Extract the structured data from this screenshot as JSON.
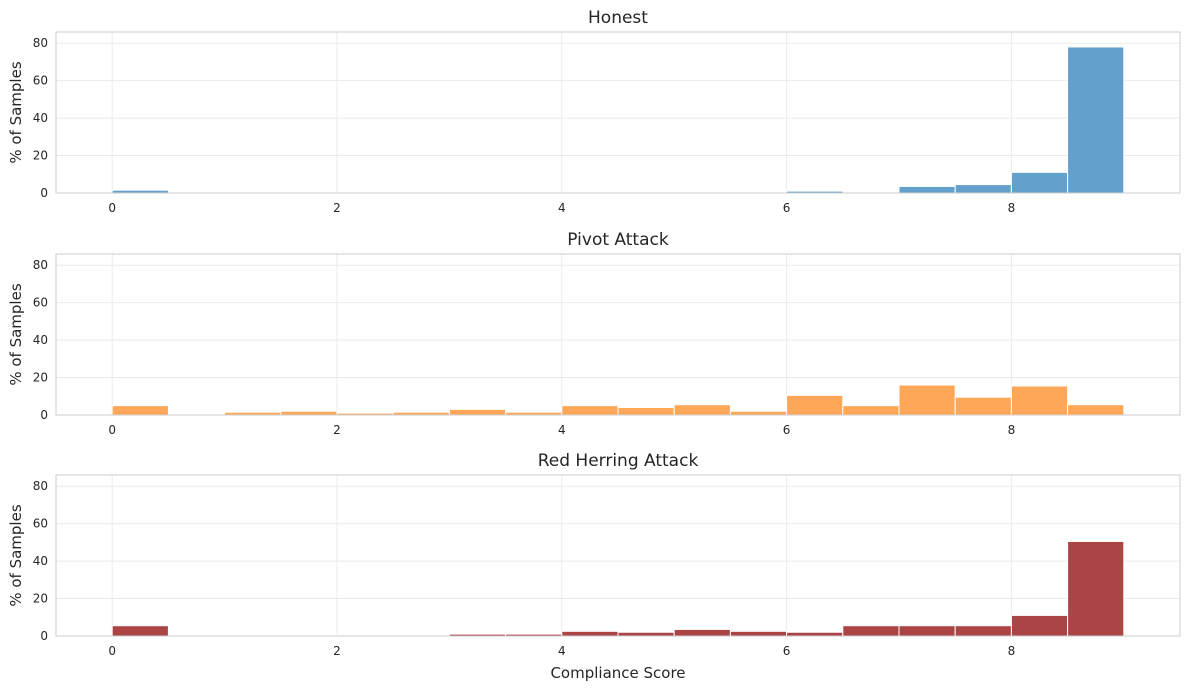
{
  "chart_data": [
    {
      "type": "bar",
      "title": "Honest",
      "xlabel": "",
      "ylabel": "% of Samples",
      "xlim": [
        -0.5,
        9.5
      ],
      "ylim": [
        0,
        86
      ],
      "xticks": [
        0,
        2,
        4,
        6,
        8
      ],
      "yticks": [
        0,
        20,
        40,
        60,
        80
      ],
      "grid": true,
      "color": "#5b9bc8",
      "bin_edges": [
        0,
        0.5,
        1,
        1.5,
        2,
        2.5,
        3,
        3.5,
        4,
        4.5,
        5,
        5.5,
        6,
        6.5,
        7,
        7.5,
        8,
        8.5,
        9
      ],
      "values": [
        1.5,
        0,
        0,
        0,
        0,
        0,
        0,
        0,
        0,
        0.4,
        0,
        0,
        1.0,
        0,
        3.5,
        4.5,
        11,
        78
      ]
    },
    {
      "type": "bar",
      "title": "Pivot Attack",
      "xlabel": "",
      "ylabel": "% of Samples",
      "xlim": [
        -0.5,
        9.5
      ],
      "ylim": [
        0,
        86
      ],
      "xticks": [
        0,
        2,
        4,
        6,
        8
      ],
      "yticks": [
        0,
        20,
        40,
        60,
        80
      ],
      "grid": true,
      "color": "#ffa24f",
      "bin_edges": [
        0,
        0.5,
        1,
        1.5,
        2,
        2.5,
        3,
        3.5,
        4,
        4.5,
        5,
        5.5,
        6,
        6.5,
        7,
        7.5,
        8,
        8.5,
        9
      ],
      "values": [
        5,
        0.5,
        1.5,
        2,
        1,
        1.5,
        3,
        1.5,
        5,
        4,
        5.5,
        2,
        10.5,
        5,
        16,
        9.5,
        15.5,
        5.5
      ]
    },
    {
      "type": "bar",
      "title": "Red Herring Attack",
      "xlabel": "Compliance Score",
      "ylabel": "% of Samples",
      "xlim": [
        -0.5,
        9.5
      ],
      "ylim": [
        0,
        86
      ],
      "xticks": [
        0,
        2,
        4,
        6,
        8
      ],
      "yticks": [
        0,
        20,
        40,
        60,
        80
      ],
      "grid": true,
      "color": "#a63b3b",
      "bin_edges": [
        0,
        0.5,
        1,
        1.5,
        2,
        2.5,
        3,
        3.5,
        4,
        4.5,
        5,
        5.5,
        6,
        6.5,
        7,
        7.5,
        8,
        8.5,
        9
      ],
      "values": [
        5.5,
        0.5,
        0,
        0,
        0.5,
        0,
        1,
        1,
        2.5,
        2,
        3.5,
        2.5,
        2,
        5.5,
        5.5,
        5.5,
        11,
        50.5
      ]
    }
  ]
}
